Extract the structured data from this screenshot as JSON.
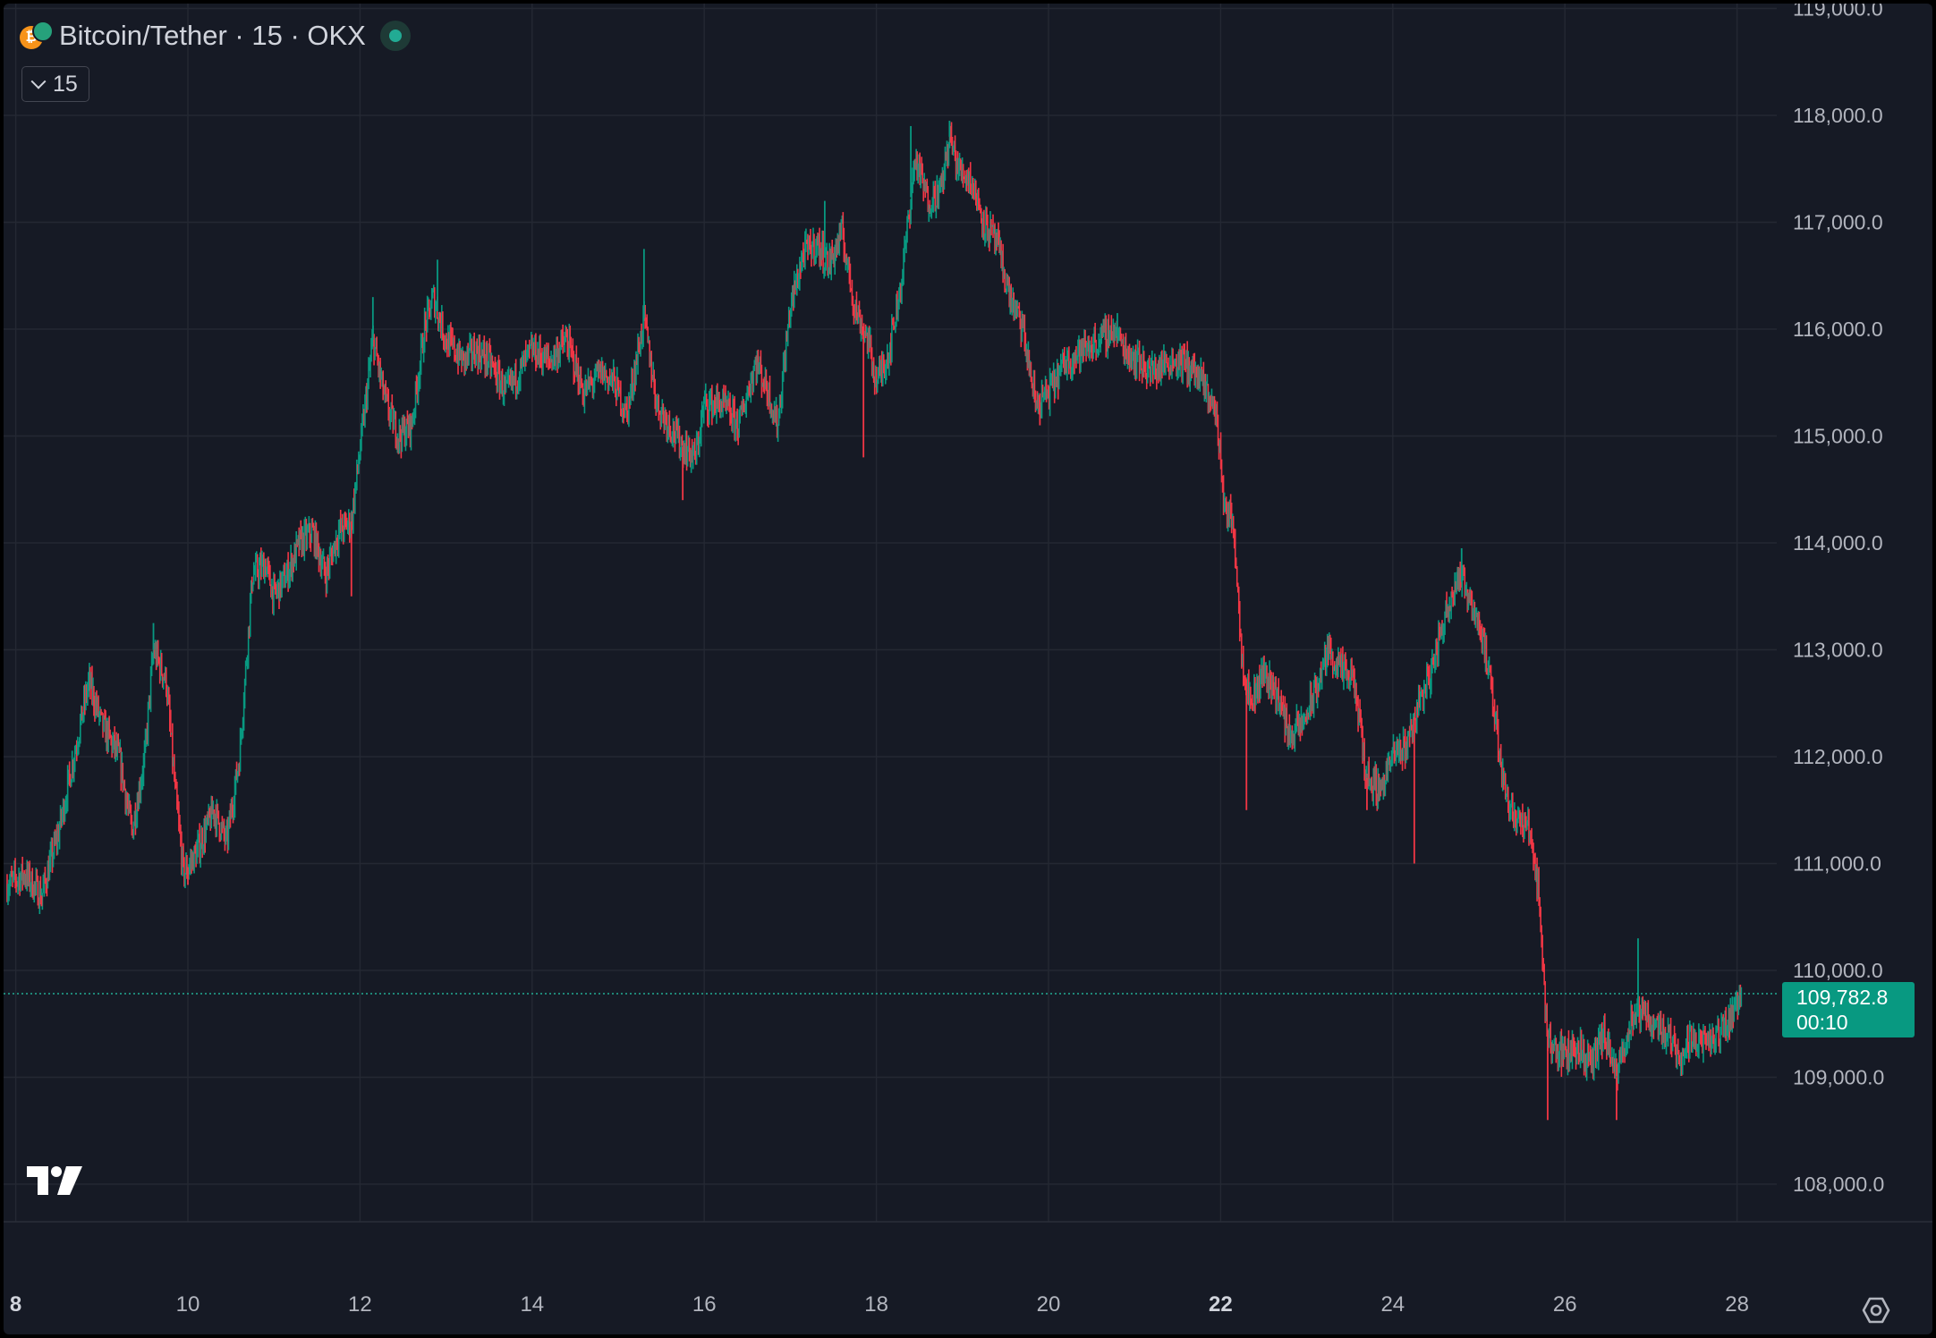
{
  "header": {
    "title": "Bitcoin/Tether · 15 · OKX",
    "interval_label": "15"
  },
  "icons": {
    "symbol": "bitcoin-tether-coin-icon",
    "status": "market-open-dot-icon",
    "logo": "tradingview-logo-icon",
    "settings": "chart-settings-gear-icon",
    "interval_toggle": "chevron-down-icon"
  },
  "colors": {
    "background": "#161a25",
    "grid": "#242833",
    "up": "#089981",
    "down": "#f23645",
    "price_line": "#22ab94",
    "text": "#b2b5be"
  },
  "price_tag": {
    "price": "109,782.8",
    "countdown": "00:10"
  },
  "chart_data": {
    "type": "candlestick",
    "x_unit": "day of month",
    "xlim": [
      7.9,
      28.1
    ],
    "ylim": [
      108000,
      119000
    ],
    "x_ticks": [
      {
        "value": 8,
        "label": "8",
        "bold": true
      },
      {
        "value": 10,
        "label": "10"
      },
      {
        "value": 12,
        "label": "12"
      },
      {
        "value": 14,
        "label": "14"
      },
      {
        "value": 16,
        "label": "16"
      },
      {
        "value": 18,
        "label": "18"
      },
      {
        "value": 20,
        "label": "20"
      },
      {
        "value": 22,
        "label": "22",
        "bold": true
      },
      {
        "value": 24,
        "label": "24"
      },
      {
        "value": 26,
        "label": "26"
      },
      {
        "value": 28,
        "label": "28"
      }
    ],
    "y_ticks": [
      {
        "value": 108000,
        "label": "108,000.0"
      },
      {
        "value": 109000,
        "label": "109,000.0"
      },
      {
        "value": 110000,
        "label": "110,000.0"
      },
      {
        "value": 111000,
        "label": "111,000.0"
      },
      {
        "value": 112000,
        "label": "112,000.0"
      },
      {
        "value": 113000,
        "label": "113,000.0"
      },
      {
        "value": 114000,
        "label": "114,000.0"
      },
      {
        "value": 115000,
        "label": "115,000.0"
      },
      {
        "value": 116000,
        "label": "116,000.0"
      },
      {
        "value": 117000,
        "label": "117,000.0"
      },
      {
        "value": 118000,
        "label": "118,000.0"
      },
      {
        "value": 119000,
        "label": "119,000.0"
      }
    ],
    "last_price": 109782.8,
    "grid": true,
    "price_path": [
      [
        7.9,
        110800
      ],
      [
        8.1,
        110900
      ],
      [
        8.3,
        110700
      ],
      [
        8.5,
        111300
      ],
      [
        8.7,
        112100
      ],
      [
        8.85,
        112700
      ],
      [
        9.0,
        112300
      ],
      [
        9.2,
        112000
      ],
      [
        9.35,
        111300
      ],
      [
        9.5,
        112000
      ],
      [
        9.6,
        113000
      ],
      [
        9.75,
        112700
      ],
      [
        9.85,
        111700
      ],
      [
        9.95,
        110900
      ],
      [
        10.1,
        111100
      ],
      [
        10.3,
        111500
      ],
      [
        10.45,
        111200
      ],
      [
        10.6,
        112000
      ],
      [
        10.75,
        113700
      ],
      [
        10.9,
        113800
      ],
      [
        11.0,
        113500
      ],
      [
        11.15,
        113700
      ],
      [
        11.3,
        114000
      ],
      [
        11.45,
        114100
      ],
      [
        11.6,
        113700
      ],
      [
        11.75,
        114100
      ],
      [
        11.9,
        114200
      ],
      [
        12.05,
        115200
      ],
      [
        12.15,
        115900
      ],
      [
        12.3,
        115300
      ],
      [
        12.45,
        115000
      ],
      [
        12.6,
        115100
      ],
      [
        12.75,
        116000
      ],
      [
        12.85,
        116300
      ],
      [
        13.0,
        115900
      ],
      [
        13.2,
        115700
      ],
      [
        13.35,
        115800
      ],
      [
        13.5,
        115700
      ],
      [
        13.7,
        115400
      ],
      [
        13.85,
        115600
      ],
      [
        14.0,
        115800
      ],
      [
        14.2,
        115700
      ],
      [
        14.4,
        115900
      ],
      [
        14.6,
        115400
      ],
      [
        14.8,
        115600
      ],
      [
        14.95,
        115500
      ],
      [
        15.1,
        115200
      ],
      [
        15.3,
        116100
      ],
      [
        15.45,
        115300
      ],
      [
        15.6,
        115100
      ],
      [
        15.75,
        114900
      ],
      [
        15.9,
        114800
      ],
      [
        16.0,
        115300
      ],
      [
        16.2,
        115300
      ],
      [
        16.4,
        115100
      ],
      [
        16.6,
        115700
      ],
      [
        16.75,
        115400
      ],
      [
        16.85,
        115100
      ],
      [
        17.0,
        116200
      ],
      [
        17.15,
        116700
      ],
      [
        17.3,
        116800
      ],
      [
        17.45,
        116600
      ],
      [
        17.6,
        116900
      ],
      [
        17.75,
        116200
      ],
      [
        17.9,
        115900
      ],
      [
        18.0,
        115500
      ],
      [
        18.15,
        115800
      ],
      [
        18.3,
        116500
      ],
      [
        18.45,
        117600
      ],
      [
        18.6,
        117200
      ],
      [
        18.75,
        117300
      ],
      [
        18.85,
        117800
      ],
      [
        18.95,
        117500
      ],
      [
        19.1,
        117400
      ],
      [
        19.25,
        117000
      ],
      [
        19.4,
        116800
      ],
      [
        19.55,
        116300
      ],
      [
        19.7,
        116000
      ],
      [
        19.85,
        115300
      ],
      [
        20.0,
        115400
      ],
      [
        20.2,
        115700
      ],
      [
        20.4,
        115800
      ],
      [
        20.6,
        115900
      ],
      [
        20.75,
        116000
      ],
      [
        20.9,
        115800
      ],
      [
        21.05,
        115700
      ],
      [
        21.2,
        115600
      ],
      [
        21.4,
        115700
      ],
      [
        21.55,
        115700
      ],
      [
        21.7,
        115600
      ],
      [
        21.85,
        115400
      ],
      [
        21.95,
        115200
      ],
      [
        22.05,
        114300
      ],
      [
        22.15,
        114200
      ],
      [
        22.25,
        112900
      ],
      [
        22.35,
        112500
      ],
      [
        22.5,
        112800
      ],
      [
        22.65,
        112600
      ],
      [
        22.8,
        112200
      ],
      [
        22.95,
        112300
      ],
      [
        23.1,
        112600
      ],
      [
        23.25,
        113000
      ],
      [
        23.4,
        112800
      ],
      [
        23.55,
        112700
      ],
      [
        23.7,
        111800
      ],
      [
        23.85,
        111700
      ],
      [
        24.0,
        112000
      ],
      [
        24.15,
        112100
      ],
      [
        24.3,
        112500
      ],
      [
        24.45,
        112800
      ],
      [
        24.6,
        113300
      ],
      [
        24.75,
        113700
      ],
      [
        24.9,
        113500
      ],
      [
        25.05,
        113100
      ],
      [
        25.2,
        112300
      ],
      [
        25.3,
        111700
      ],
      [
        25.45,
        111400
      ],
      [
        25.6,
        111300
      ],
      [
        25.7,
        110700
      ],
      [
        25.78,
        109500
      ],
      [
        25.85,
        109300
      ],
      [
        26.0,
        109200
      ],
      [
        26.15,
        109300
      ],
      [
        26.3,
        109100
      ],
      [
        26.45,
        109400
      ],
      [
        26.6,
        109000
      ],
      [
        26.75,
        109500
      ],
      [
        26.9,
        109600
      ],
      [
        27.05,
        109500
      ],
      [
        27.2,
        109400
      ],
      [
        27.35,
        109200
      ],
      [
        27.5,
        109400
      ],
      [
        27.65,
        109300
      ],
      [
        27.8,
        109400
      ],
      [
        27.95,
        109600
      ],
      [
        28.05,
        109783
      ]
    ],
    "spikes": [
      {
        "x": 8.3,
        "low": 110600
      },
      {
        "x": 9.6,
        "high": 113250
      },
      {
        "x": 10.0,
        "low": 110800
      },
      {
        "x": 11.9,
        "low": 113500
      },
      {
        "x": 12.15,
        "high": 116300
      },
      {
        "x": 12.9,
        "high": 116650
      },
      {
        "x": 15.3,
        "high": 116750
      },
      {
        "x": 15.75,
        "low": 114400
      },
      {
        "x": 17.4,
        "high": 117200
      },
      {
        "x": 17.85,
        "low": 114800
      },
      {
        "x": 18.4,
        "high": 117900
      },
      {
        "x": 18.85,
        "high": 117950
      },
      {
        "x": 19.9,
        "low": 115100
      },
      {
        "x": 20.8,
        "high": 116150
      },
      {
        "x": 22.3,
        "low": 111500
      },
      {
        "x": 23.7,
        "low": 111500
      },
      {
        "x": 24.25,
        "low": 111000
      },
      {
        "x": 24.8,
        "high": 113950
      },
      {
        "x": 25.8,
        "low": 108600
      },
      {
        "x": 26.6,
        "low": 108600
      },
      {
        "x": 26.85,
        "high": 110300
      }
    ]
  }
}
